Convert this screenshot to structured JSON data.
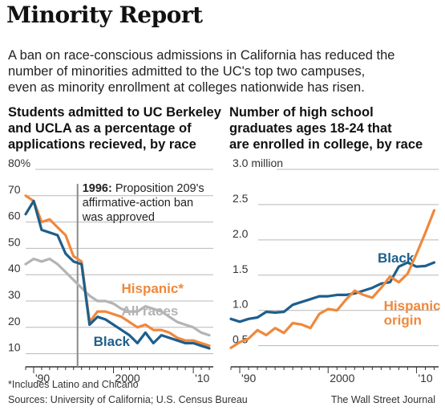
{
  "header": {
    "title": "Minority Report",
    "intro_lines": [
      "A ban on race-conscious admissions in California has reduced the",
      "number of minorities admitted to the UC's top two campuses,",
      "even as minority enrollment at colleges nationwide has risen."
    ]
  },
  "left_title_lines": [
    "Students admitted to UC Berkeley",
    "and UCLA as a percentage of",
    "applications recieved, by race"
  ],
  "right_title_lines": [
    "Number of high school",
    "graduates ages 18-24 that",
    "are enrolled in college, by race"
  ],
  "annotation": {
    "bold": "1996:",
    "lines": [
      " Proposition 209's",
      "affirmative-action ban",
      "was approved"
    ],
    "x": 1995.5
  },
  "colors": {
    "hispanic": "#f0883c",
    "black": "#1d5f8c",
    "all": "#b4b4b4",
    "grid": "#b8b8b8",
    "axis": "#333333",
    "marker": "#8a8a8a"
  },
  "chart_data": [
    {
      "type": "line",
      "title": "Students admitted to UC Berkeley and UCLA as a percentage of applications recieved, by race",
      "y_tick_labels": [
        "80%",
        "70",
        "60",
        "50",
        "40",
        "30",
        "20",
        "10"
      ],
      "y_ticks": [
        80,
        70,
        60,
        50,
        40,
        30,
        20,
        10
      ],
      "ylim": [
        5,
        80
      ],
      "x_tick_labels": [
        "'90",
        "2000",
        "'10"
      ],
      "x_ticks": [
        1990,
        2000,
        2010
      ],
      "xlim": [
        1989,
        2012.5
      ],
      "grid": true,
      "x": [
        1989,
        1990,
        1991,
        1992,
        1993,
        1994,
        1995,
        1996,
        1997,
        1998,
        1999,
        2000,
        2001,
        2002,
        2003,
        2004,
        2005,
        2006,
        2007,
        2008,
        2009,
        2010,
        2011,
        2012
      ],
      "series": [
        {
          "name": "Hispanic*",
          "color_key": "hispanic",
          "label_year": 2001.0,
          "label_value": 33,
          "values": [
            70,
            68,
            60,
            61,
            58,
            55,
            47,
            45,
            22,
            26,
            26,
            25,
            24,
            22,
            20,
            21,
            19,
            19,
            18,
            16,
            15,
            15,
            14,
            13
          ]
        },
        {
          "name": "All races",
          "color_key": "all",
          "label_year": 2001.0,
          "label_value": 24.5,
          "values": [
            44,
            46,
            45,
            46,
            44,
            41,
            38,
            35,
            32,
            30,
            30,
            29,
            27,
            26,
            26,
            28,
            27,
            26,
            24,
            22,
            21,
            20,
            18,
            17
          ]
        },
        {
          "name": "Black",
          "color_key": "black",
          "label_year": 1997.5,
          "label_value": 13,
          "values": [
            63,
            68,
            57,
            56,
            55,
            48,
            45,
            44,
            21,
            24,
            23,
            21,
            19,
            17,
            14,
            18,
            14,
            17,
            16,
            15,
            14,
            14,
            13,
            12
          ]
        }
      ]
    },
    {
      "type": "line",
      "title": "Number of high school graduates ages 18-24 that are enrolled in college, by race",
      "y_tick_labels": [
        "3.0 million",
        "2.5",
        "2.0",
        "1.5",
        "1.0",
        "0.5"
      ],
      "y_ticks": [
        3.0,
        2.5,
        2.0,
        1.5,
        1.0,
        0.5
      ],
      "ylim": [
        0.2,
        3.0
      ],
      "x_tick_labels": [
        "'90",
        "2000",
        "'10"
      ],
      "x_ticks": [
        1990,
        2000,
        2010
      ],
      "xlim": [
        1989,
        2012.5
      ],
      "grid": true,
      "x": [
        1989,
        1990,
        1991,
        1992,
        1993,
        1994,
        1995,
        1996,
        1997,
        1998,
        1999,
        2000,
        2001,
        2002,
        2003,
        2004,
        2005,
        2006,
        2007,
        2008,
        2009,
        2010,
        2011,
        2012
      ],
      "series": [
        {
          "name": "Black",
          "color_key": "black",
          "label_year": 2005.6,
          "label_value": 1.68,
          "values": [
            0.88,
            0.84,
            0.88,
            0.9,
            0.98,
            0.97,
            0.98,
            1.08,
            1.12,
            1.16,
            1.2,
            1.2,
            1.22,
            1.22,
            1.24,
            1.28,
            1.32,
            1.38,
            1.4,
            1.62,
            1.68,
            1.62,
            1.63,
            1.68
          ]
        },
        {
          "name": "Hispanic",
          "name2": "origin",
          "color_key": "hispanic",
          "label_year": 2006.3,
          "label_value": 1.0,
          "values": [
            0.47,
            0.55,
            0.6,
            0.72,
            0.65,
            0.75,
            0.68,
            0.82,
            0.8,
            0.75,
            0.95,
            1.02,
            1.0,
            1.15,
            1.28,
            1.22,
            1.18,
            1.32,
            1.48,
            1.4,
            1.52,
            1.8,
            2.1,
            2.42
          ]
        }
      ]
    }
  ],
  "footer": {
    "footnote": "*Includes Latino and Chicano",
    "sources": "Sources: University of California; U.S. Census Bureau",
    "credit": "The Wall Street Journal"
  }
}
